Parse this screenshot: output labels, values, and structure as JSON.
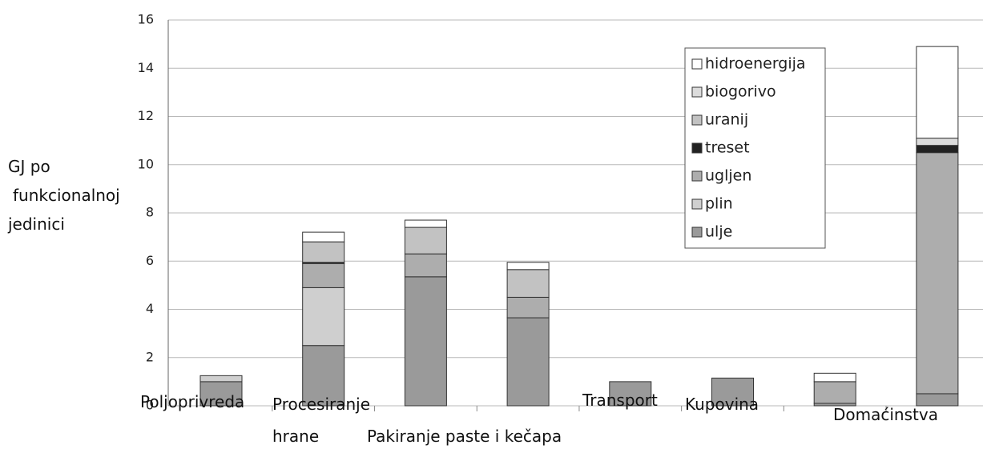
{
  "chart_data": {
    "type": "stacked_bar",
    "y_label": [
      "GJ po",
      "funkcionalnoj",
      "jedinici"
    ],
    "categories": [
      "Poljoprivreda",
      "Procesiranje hrane",
      "Pakiranje paste i kečapa",
      null,
      "Transport",
      "Kupovina",
      null,
      "Domaćinstva"
    ],
    "series": [
      {
        "name": "ulje",
        "color": "#9a9a9a",
        "values": [
          1.0,
          2.5,
          5.35,
          3.65,
          1.0,
          1.15,
          0.1,
          0.5
        ]
      },
      {
        "name": "plin",
        "color": "#cfcfcf",
        "values": [
          0.25,
          2.4,
          0,
          0,
          0,
          0,
          0,
          0
        ]
      },
      {
        "name": "ugljen",
        "color": "#adadad",
        "values": [
          0,
          1.0,
          0.95,
          0.85,
          0,
          0,
          0.9,
          10.0
        ]
      },
      {
        "name": "treset",
        "color": "#222222",
        "values": [
          0,
          0.05,
          0,
          0,
          0,
          0,
          0,
          0.3
        ]
      },
      {
        "name": "uranij",
        "color": "#c2c2c2",
        "values": [
          0,
          0.85,
          1.1,
          1.15,
          0,
          0,
          0,
          0
        ]
      },
      {
        "name": "biogorivo",
        "color": "#dcdcdc",
        "values": [
          0,
          0,
          0,
          0,
          0,
          0,
          0,
          0.3
        ]
      },
      {
        "name": "hidroenergija",
        "color": "#ffffff",
        "values": [
          0,
          0.4,
          0.3,
          0.3,
          0,
          0,
          0.35,
          3.8
        ]
      }
    ],
    "ylim": [
      0,
      16
    ],
    "yticks": [
      0,
      2,
      4,
      6,
      8,
      10,
      12,
      14,
      16
    ],
    "grid": true,
    "legend": "top-right"
  }
}
